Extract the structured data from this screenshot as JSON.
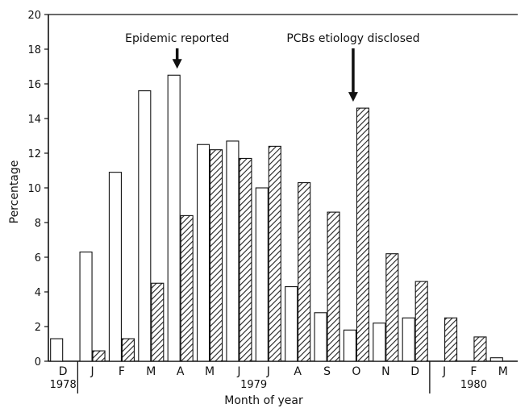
{
  "chart_data": {
    "type": "bar",
    "title": "",
    "xlabel": "Month of year",
    "ylabel": "Percentage",
    "ylim": [
      0,
      20
    ],
    "yticks": [
      "0",
      "2",
      "4",
      "6",
      "8",
      "10",
      "12",
      "14",
      "16",
      "18",
      "20"
    ],
    "categories": [
      "D",
      "J",
      "F",
      "M",
      "A",
      "M",
      "J",
      "J",
      "A",
      "S",
      "O",
      "N",
      "D",
      "J",
      "F",
      "M"
    ],
    "year_groups": [
      {
        "label": "1978",
        "start": 0,
        "end": 0
      },
      {
        "label": "1979",
        "start": 1,
        "end": 12
      },
      {
        "label": "1980",
        "start": 13,
        "end": 15
      }
    ],
    "series": [
      {
        "values": [
          1.3,
          6.3,
          10.9,
          15.6,
          16.5,
          12.5,
          12.7,
          10.0,
          4.3,
          2.8,
          1.8,
          2.2,
          2.5,
          null,
          null,
          0.2
        ],
        "style": "open"
      },
      {
        "values": [
          null,
          0.6,
          1.3,
          4.5,
          8.4,
          12.2,
          11.7,
          12.4,
          10.3,
          8.6,
          14.6,
          6.2,
          4.6,
          2.5,
          1.4,
          null
        ],
        "style": "hatched"
      }
    ],
    "annotations": [
      {
        "text": "Epidemic reported",
        "category_index": 4
      },
      {
        "text": "PCBs etiology disclosed",
        "category_index": 10
      }
    ],
    "grid": false,
    "legend": "none"
  }
}
